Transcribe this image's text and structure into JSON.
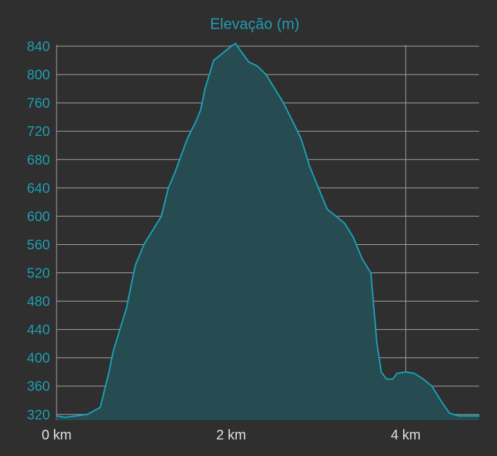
{
  "chart_data": {
    "type": "area",
    "title": "Elevação (m)",
    "xlabel": "",
    "ylabel": "",
    "x_unit": "km",
    "xlim": [
      0,
      4.84
    ],
    "ylim": [
      312,
      842
    ],
    "y_ticks": [
      320,
      360,
      400,
      440,
      480,
      520,
      560,
      600,
      640,
      680,
      720,
      760,
      800,
      840
    ],
    "y_tick_labels": [
      "320",
      "360",
      "400",
      "440",
      "480",
      "520",
      "560",
      "600",
      "640",
      "680",
      "720",
      "760",
      "800",
      "840"
    ],
    "x_ticks": [
      0,
      2,
      4
    ],
    "x_tick_labels": [
      "0 km",
      "2 km",
      "4 km"
    ],
    "x_gridlines": [
      2,
      4
    ],
    "grid": true,
    "legend": false,
    "colors": {
      "background": "#2f2f2f",
      "line": "#1aa3b8",
      "fill": "#264c52",
      "grid": "#a9a9a9",
      "axis_text": "#1f9db1",
      "x_tick_text": "#e0e0e0"
    },
    "series": [
      {
        "x": [
          0,
          0.1,
          0.35,
          0.5,
          0.6,
          0.65,
          0.7,
          0.8,
          0.9,
          1.0,
          1.1,
          1.2,
          1.28,
          1.35,
          1.5,
          1.6,
          1.65,
          1.7,
          1.8,
          1.9,
          2.0,
          2.05,
          2.1,
          2.2,
          2.3,
          2.4,
          2.5,
          2.6,
          2.7,
          2.8,
          2.9,
          3.1,
          3.3,
          3.4,
          3.5,
          3.6,
          3.67,
          3.72,
          3.78,
          3.85,
          3.9,
          4.0,
          4.1,
          4.2,
          4.3,
          4.4,
          4.5,
          4.6,
          4.84
        ],
        "y": [
          318,
          316,
          320,
          330,
          380,
          410,
          430,
          470,
          530,
          560,
          580,
          600,
          640,
          660,
          710,
          735,
          750,
          780,
          820,
          830,
          840,
          844,
          835,
          818,
          812,
          800,
          780,
          760,
          735,
          710,
          670,
          610,
          590,
          570,
          540,
          520,
          420,
          380,
          370,
          370,
          378,
          380,
          378,
          370,
          360,
          340,
          322,
          318,
          318
        ]
      }
    ]
  }
}
